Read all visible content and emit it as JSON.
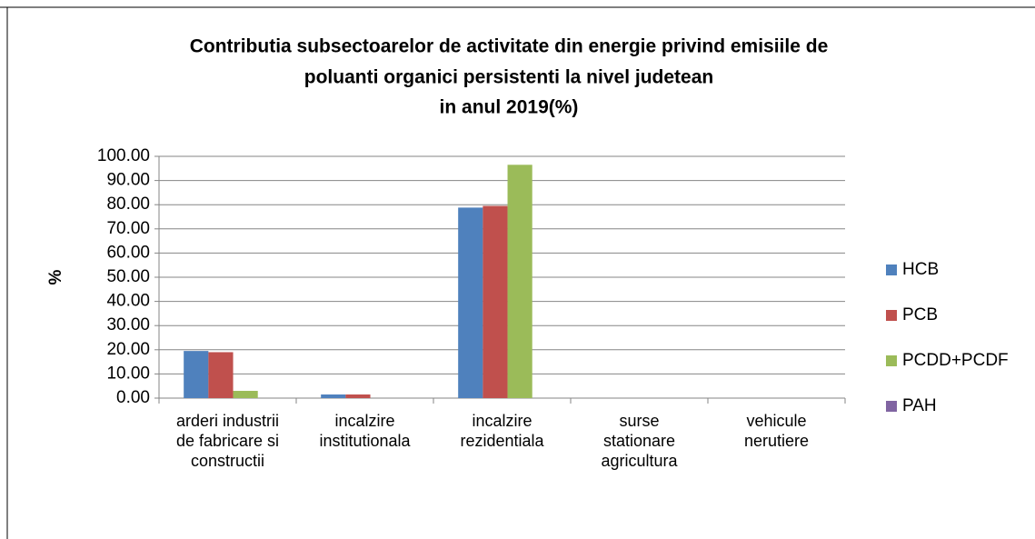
{
  "chart_data": {
    "type": "bar",
    "title": [
      "Contributia subsectoarelor de activitate din energie privind emisiile de",
      "poluanti organici persistenti la nivel judetean",
      "in anul 2019(%)"
    ],
    "y_label": "%",
    "categories": [
      "arderi industrii de fabricare si constructii",
      "incalzire institutionala",
      "incalzire rezidentiala",
      "surse stationare agricultura",
      "vehicule nerutiere"
    ],
    "series": [
      {
        "name": "HCB",
        "color": "#4f81bd",
        "values": [
          19.5,
          1.5,
          78.8,
          0,
          0
        ]
      },
      {
        "name": "PCB",
        "color": "#c0504d",
        "values": [
          19,
          1.5,
          79.5,
          0,
          0
        ]
      },
      {
        "name": "PCDD+PCDF",
        "color": "#9bbb59",
        "values": [
          3,
          0,
          96.5,
          0,
          0
        ]
      },
      {
        "name": "PAH",
        "color": "#8064a2",
        "values": [
          0,
          0,
          0,
          0,
          0
        ]
      }
    ],
    "ylim": [
      0,
      100
    ],
    "yticks": [
      {
        "value": 0,
        "label": "0.00"
      },
      {
        "value": 10,
        "label": "10.00"
      },
      {
        "value": 20,
        "label": "20.00"
      },
      {
        "value": 30,
        "label": "30.00"
      },
      {
        "value": 40,
        "label": "40.00"
      },
      {
        "value": 50,
        "label": "50.00"
      },
      {
        "value": 60,
        "label": "60.00"
      },
      {
        "value": 70,
        "label": "70.00"
      },
      {
        "value": 80,
        "label": "80.00"
      },
      {
        "value": 90,
        "label": "90.00"
      },
      {
        "value": 100,
        "label": "100.00"
      }
    ],
    "grid": true,
    "legend": "right"
  }
}
